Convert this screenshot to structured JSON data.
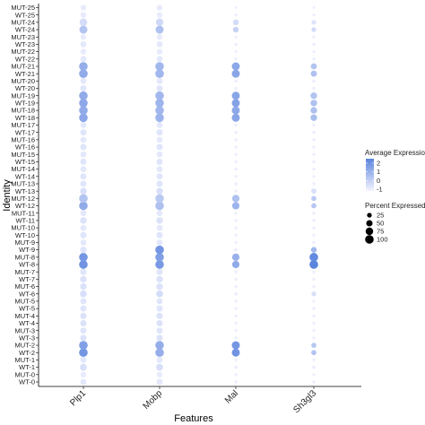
{
  "chart_data": {
    "type": "dotplot",
    "xlabel": "Features",
    "ylabel": "Identity",
    "features": [
      "Plp1",
      "Mobp",
      "Mal",
      "Sh3gl3"
    ],
    "identities": [
      "WT-0",
      "MUT-0",
      "WT-1",
      "MUT-1",
      "WT-2",
      "MUT-2",
      "WT-3",
      "MUT-3",
      "WT-4",
      "MUT-4",
      "WT-5",
      "MUT-5",
      "WT-6",
      "MUT-6",
      "WT-7",
      "MUT-7",
      "WT-8",
      "MUT-8",
      "WT-9",
      "MUT-9",
      "WT-10",
      "MUT-10",
      "WT-11",
      "MUT-11",
      "WT-12",
      "MUT-12",
      "WT-13",
      "MUT-13",
      "WT-14",
      "MUT-14",
      "WT-15",
      "MUT-15",
      "WT-16",
      "MUT-16",
      "WT-17",
      "MUT-17",
      "WT-18",
      "MUT-18",
      "WT-19",
      "MUT-19",
      "WT-20",
      "MUT-20",
      "WT-21",
      "MUT-21",
      "WT-22",
      "MUT-22",
      "WT-23",
      "MUT-23",
      "WT-24",
      "MUT-24",
      "WT-25",
      "MUT-25"
    ],
    "avg_expression": [
      [
        -0.8,
        -0.8,
        -1.0,
        -1.0
      ],
      [
        -0.9,
        -0.9,
        -1.0,
        -1.0
      ],
      [
        -0.5,
        -0.5,
        -1.0,
        -1.0
      ],
      [
        -0.8,
        -0.8,
        -1.0,
        -1.0
      ],
      [
        1.9,
        1.1,
        2.0,
        0.4
      ],
      [
        1.6,
        1.1,
        1.9,
        0.3
      ],
      [
        -0.6,
        -0.6,
        -1.0,
        -1.0
      ],
      [
        -0.7,
        -0.7,
        -1.0,
        -1.0
      ],
      [
        -0.6,
        -0.6,
        -1.0,
        -1.0
      ],
      [
        -0.6,
        -0.6,
        -1.0,
        -1.0
      ],
      [
        -0.7,
        -0.7,
        -1.0,
        -1.0
      ],
      [
        -0.7,
        -0.7,
        -1.0,
        -1.0
      ],
      [
        -0.5,
        -0.4,
        -1.0,
        -0.5
      ],
      [
        -0.6,
        -0.6,
        -1.0,
        -1.0
      ],
      [
        -0.6,
        -0.6,
        -1.0,
        -1.0
      ],
      [
        -0.7,
        -0.7,
        -1.0,
        -1.0
      ],
      [
        2.0,
        1.8,
        1.2,
        2.5
      ],
      [
        1.9,
        1.6,
        1.0,
        2.3
      ],
      [
        -0.7,
        1.9,
        -1.0,
        0.8
      ],
      [
        -0.8,
        -0.8,
        -1.0,
        -1.0
      ],
      [
        -0.7,
        -0.7,
        -1.0,
        -1.0
      ],
      [
        -0.8,
        -0.8,
        -1.0,
        -1.0
      ],
      [
        -0.6,
        -0.6,
        -1.0,
        -1.0
      ],
      [
        -0.8,
        -0.8,
        -1.0,
        -1.0
      ],
      [
        1.2,
        0.5,
        0.9,
        0.3
      ],
      [
        0.4,
        0.2,
        0.5,
        0.2
      ],
      [
        -0.5,
        -0.5,
        -1.0,
        -0.5
      ],
      [
        -0.7,
        -0.7,
        -1.0,
        -1.0
      ],
      [
        -0.7,
        -0.7,
        -1.0,
        -1.0
      ],
      [
        -0.8,
        -0.8,
        -1.0,
        -1.0
      ],
      [
        -0.7,
        -0.7,
        -1.0,
        -1.0
      ],
      [
        -0.8,
        -0.8,
        -1.0,
        -1.0
      ],
      [
        -0.7,
        -0.7,
        -1.0,
        -1.0
      ],
      [
        -0.8,
        -0.8,
        -1.0,
        -1.0
      ],
      [
        -0.7,
        -0.7,
        -1.0,
        -1.0
      ],
      [
        -0.8,
        -0.8,
        -1.0,
        -1.0
      ],
      [
        1.3,
        0.9,
        1.4,
        0.6
      ],
      [
        1.2,
        0.8,
        1.3,
        0.5
      ],
      [
        1.3,
        0.9,
        1.5,
        0.5
      ],
      [
        1.2,
        0.8,
        1.4,
        0.4
      ],
      [
        -0.7,
        -0.7,
        -1.0,
        -1.0
      ],
      [
        -0.8,
        -0.8,
        -1.0,
        -1.0
      ],
      [
        1.2,
        0.8,
        1.4,
        0.5
      ],
      [
        1.1,
        0.8,
        1.3,
        0.4
      ],
      [
        -0.8,
        -0.8,
        -1.0,
        -1.0
      ],
      [
        -0.9,
        -0.9,
        -1.0,
        -1.0
      ],
      [
        -0.8,
        -0.8,
        -1.0,
        -1.0
      ],
      [
        -0.9,
        -0.9,
        -1.0,
        -1.0
      ],
      [
        0.4,
        0.5,
        -0.1,
        -0.4
      ],
      [
        -0.4,
        -0.3,
        -0.4,
        -0.7
      ],
      [
        -0.9,
        -0.9,
        -1.0,
        -1.0
      ],
      [
        -0.9,
        -0.9,
        -1.0,
        -1.0
      ]
    ],
    "pct_expressed": [
      [
        45,
        45,
        8,
        8
      ],
      [
        40,
        40,
        6,
        6
      ],
      [
        60,
        60,
        10,
        10
      ],
      [
        45,
        45,
        8,
        8
      ],
      [
        100,
        100,
        85,
        30
      ],
      [
        100,
        100,
        85,
        30
      ],
      [
        50,
        50,
        8,
        8
      ],
      [
        48,
        48,
        8,
        8
      ],
      [
        50,
        50,
        8,
        8
      ],
      [
        50,
        50,
        8,
        8
      ],
      [
        48,
        48,
        8,
        8
      ],
      [
        45,
        45,
        8,
        8
      ],
      [
        60,
        60,
        10,
        25
      ],
      [
        55,
        55,
        8,
        8
      ],
      [
        55,
        55,
        8,
        8
      ],
      [
        50,
        50,
        8,
        8
      ],
      [
        100,
        100,
        70,
        100
      ],
      [
        100,
        100,
        70,
        100
      ],
      [
        55,
        100,
        10,
        40
      ],
      [
        45,
        45,
        8,
        8
      ],
      [
        50,
        50,
        8,
        8
      ],
      [
        45,
        45,
        8,
        8
      ],
      [
        55,
        55,
        8,
        8
      ],
      [
        45,
        45,
        8,
        8
      ],
      [
        100,
        100,
        70,
        30
      ],
      [
        100,
        100,
        70,
        30
      ],
      [
        55,
        55,
        8,
        30
      ],
      [
        48,
        48,
        8,
        8
      ],
      [
        48,
        48,
        8,
        8
      ],
      [
        45,
        45,
        8,
        8
      ],
      [
        48,
        48,
        8,
        8
      ],
      [
        45,
        45,
        8,
        8
      ],
      [
        48,
        48,
        8,
        8
      ],
      [
        45,
        45,
        8,
        8
      ],
      [
        48,
        48,
        8,
        8
      ],
      [
        45,
        45,
        8,
        8
      ],
      [
        100,
        100,
        85,
        55
      ],
      [
        100,
        100,
        85,
        55
      ],
      [
        100,
        100,
        85,
        55
      ],
      [
        100,
        100,
        85,
        55
      ],
      [
        48,
        48,
        8,
        8
      ],
      [
        45,
        45,
        8,
        8
      ],
      [
        100,
        100,
        85,
        45
      ],
      [
        100,
        100,
        85,
        45
      ],
      [
        45,
        45,
        8,
        8
      ],
      [
        40,
        40,
        6,
        6
      ],
      [
        45,
        45,
        8,
        8
      ],
      [
        40,
        40,
        6,
        6
      ],
      [
        85,
        85,
        40,
        25
      ],
      [
        75,
        75,
        40,
        25
      ],
      [
        40,
        40,
        6,
        6
      ],
      [
        40,
        40,
        6,
        6
      ]
    ],
    "color_low": "#f4f4ff",
    "color_high": "#5b84dd",
    "color_legend": {
      "title": "Average Expression",
      "ticks": [
        "2",
        "1",
        "0",
        "-1"
      ],
      "tick_values": [
        2,
        1,
        0,
        -1
      ],
      "range": [
        -1.2,
        2.5
      ]
    },
    "size_legend": {
      "title": "Percent Expressed",
      "labels": [
        "25",
        "50",
        "75",
        "100"
      ],
      "values": [
        25,
        50,
        75,
        100
      ]
    },
    "grid": false,
    "legend_position": "right"
  }
}
